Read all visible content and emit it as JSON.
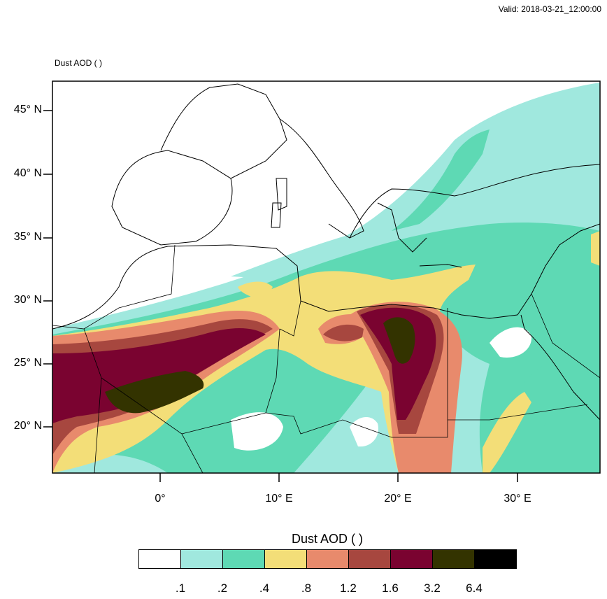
{
  "header": {
    "valid": "Valid: 2018-03-21_12:00:00"
  },
  "map": {
    "title": "Dust AOD   ( )",
    "lat_labels": [
      "45° N",
      "40° N",
      "35° N",
      "30° N",
      "25° N",
      "20° N"
    ],
    "lon_labels": [
      "0°",
      "10° E",
      "20° E",
      "30° E"
    ],
    "extent": {
      "lon": [
        -9,
        37
      ],
      "lat": [
        16.5,
        47.5
      ]
    },
    "colors": {
      "coast": "#000000",
      "frame": "#000000"
    }
  },
  "colorbar": {
    "title": "Dust AOD  ( )",
    "levels": [
      ".1",
      ".2",
      ".4",
      ".8",
      "1.2",
      "1.6",
      "3.2",
      "6.4"
    ],
    "colors": [
      "#ffffff",
      "#a0e8de",
      "#5ed9b4",
      "#f3de78",
      "#e88a6c",
      "#a7473f",
      "#7a0330",
      "#333300",
      "#000000"
    ]
  }
}
